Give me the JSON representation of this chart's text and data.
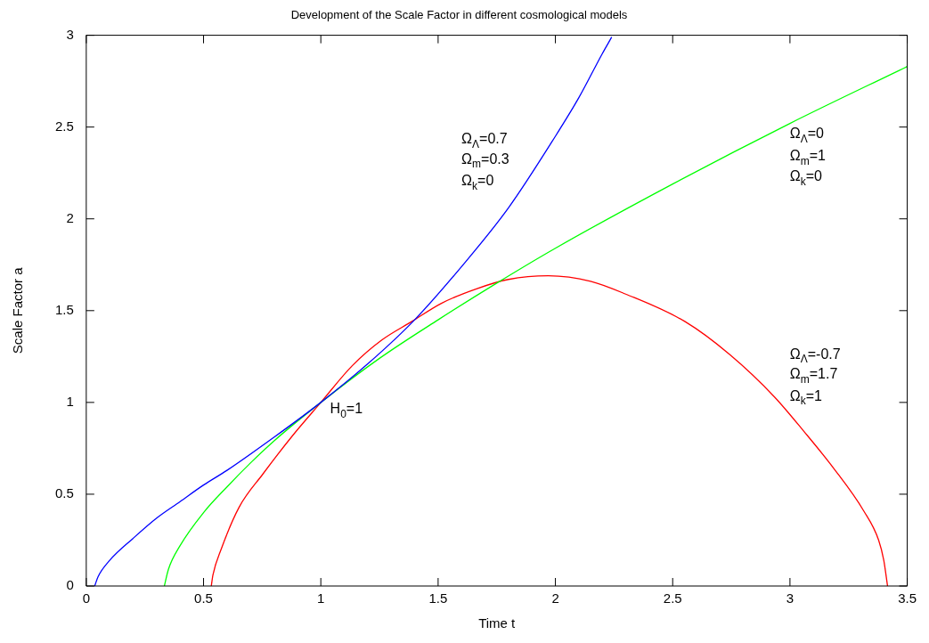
{
  "chart_data": {
    "type": "line",
    "title": "Development of the Scale Factor in different cosmological models",
    "xlabel": "Time t",
    "ylabel": "Scale Factor a",
    "xlim": [
      0,
      3.5
    ],
    "ylim": [
      0,
      3
    ],
    "xticks": [
      0,
      0.5,
      1,
      1.5,
      2,
      2.5,
      3,
      3.5
    ],
    "yticks": [
      0,
      0.5,
      1,
      1.5,
      2,
      2.5,
      3
    ],
    "grid": false,
    "legend": false,
    "marker": "none",
    "line_style": "solid",
    "series": [
      {
        "color": "#0000ff",
        "x": [
          0.036,
          0.05,
          0.1,
          0.2,
          0.3,
          0.4,
          0.5,
          0.6,
          0.8,
          1,
          1.2,
          1.4,
          1.6,
          1.8,
          2,
          2.1,
          2.2,
          2.24
        ],
        "values": [
          0,
          0.05,
          0.14,
          0.26,
          0.37,
          0.46,
          0.55,
          0.63,
          0.81,
          1,
          1.21,
          1.45,
          1.74,
          2.06,
          2.45,
          2.66,
          2.9,
          2.99
        ]
      },
      {
        "color": "#00ff00",
        "x": [
          0.333,
          0.35,
          0.4,
          0.5,
          0.6,
          0.7,
          0.8,
          1,
          1.25,
          1.5,
          1.75,
          2,
          2.5,
          3,
          3.5
        ],
        "values": [
          0,
          0.09,
          0.22,
          0.4,
          0.54,
          0.67,
          0.79,
          1,
          1.24,
          1.45,
          1.65,
          1.84,
          2.19,
          2.52,
          2.83
        ]
      },
      {
        "color": "#ff0000",
        "x": [
          0.533,
          0.54,
          0.575,
          0.652,
          0.753,
          0.88,
          1,
          1.134,
          1.26,
          1.387,
          1.514,
          1.666,
          1.8,
          1.97,
          2.15,
          2.3,
          2.553,
          2.744,
          2.934,
          3.061,
          3.187,
          3.314,
          3.378,
          3.4,
          3.416
        ],
        "values": [
          0,
          0.06,
          0.2,
          0.43,
          0.61,
          0.82,
          1,
          1.2,
          1.34,
          1.44,
          1.54,
          1.62,
          1.67,
          1.69,
          1.66,
          1.59,
          1.44,
          1.26,
          1.03,
          0.84,
          0.64,
          0.41,
          0.25,
          0.14,
          0
        ]
      }
    ],
    "annotations": [
      "Ω$_{Λ}$=0.7",
      "Ω$_{m}$=0.3",
      "Ω$_{k}$=0",
      "Ω$_{Λ}$=0",
      "Ω$_{m}$=1",
      "Ω$_{k}$=0",
      "Ω$_{Λ}$=-0.7",
      "Ω$_{m}$=1.7",
      "Ω$_{k}$=1",
      "H$_{0}$=1"
    ]
  }
}
